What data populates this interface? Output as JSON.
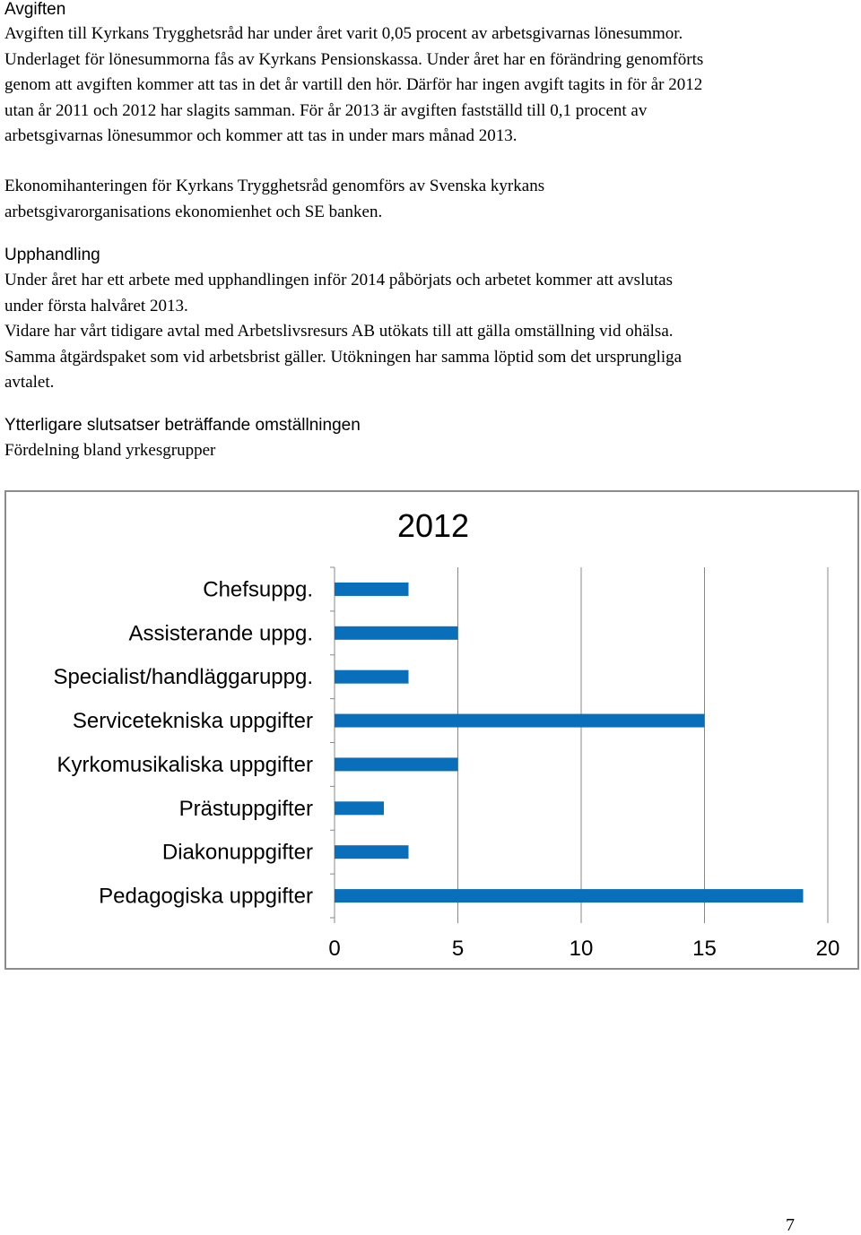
{
  "sections": {
    "avgiften": {
      "heading": "Avgiften",
      "lines": [
        "Avgiften till Kyrkans Trygghetsråd har under året varit 0,05 procent av arbetsgivarnas lönesummor.",
        "Underlaget för lönesummorna fås av Kyrkans Pensionskassa. Under året har en förändring genomförts",
        "genom att avgiften kommer att tas in det år vartill den hör. Därför har ingen avgift tagits in för år 2012",
        "utan år 2011 och 2012 har slagits samman. För år 2013 är avgiften fastställd till 0,1 procent av",
        "arbetsgivarnas lönesummor och kommer att tas in under mars månad 2013."
      ],
      "lines2": [
        "Ekonomihanteringen för Kyrkans Trygghetsråd genomförs av Svenska kyrkans",
        "arbetsgivarorganisations ekonomienhet och SE banken."
      ]
    },
    "upphandling": {
      "heading": "Upphandling",
      "lines": [
        "Under året har ett arbete med upphandlingen inför 2014 påbörjats och arbetet kommer att avslutas",
        "under första halvåret 2013.",
        "Vidare har vårt tidigare avtal med Arbetslivsresurs AB utökats till att gälla omställning vid ohälsa.",
        "Samma åtgärdspaket som vid arbetsbrist gäller. Utökningen har samma löptid som det ursprungliga",
        "avtalet."
      ]
    },
    "slutsatser": {
      "heading": "Ytterligare slutsatser beträffande omställningen",
      "subheading": "Fördelning bland yrkesgrupper"
    }
  },
  "chart_data": {
    "type": "bar",
    "orientation": "horizontal",
    "title": "2012",
    "categories": [
      "Chefsuppg.",
      "Assisterande uppg.",
      "Specialist/handläggaruppg.",
      "Servicetekniska uppgifter",
      "Kyrkomusikaliska uppgifter",
      "Prästuppgifter",
      "Diakonuppgifter",
      "Pedagogiska uppgifter"
    ],
    "values": [
      3,
      5,
      3,
      15,
      5,
      2,
      3,
      19
    ],
    "xlim": [
      0,
      20
    ],
    "xticks": [
      0,
      5,
      10,
      15,
      20
    ],
    "grid": true,
    "bar_color": "#0a6fba",
    "grid_color": "#888888"
  },
  "page_number": "7"
}
